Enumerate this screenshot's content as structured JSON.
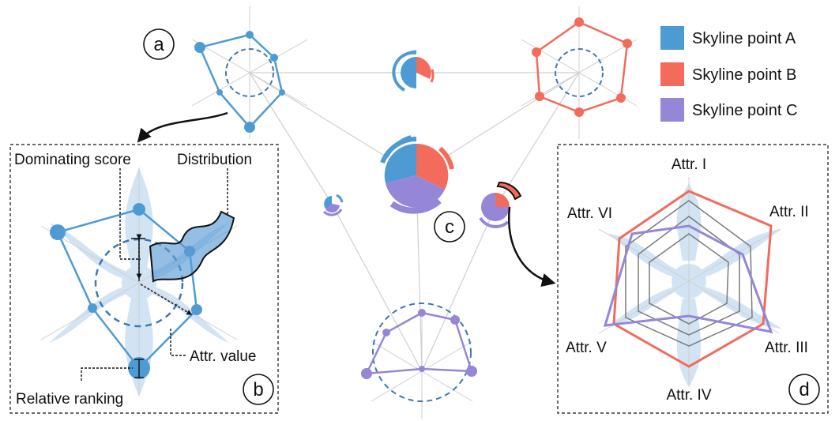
{
  "panel_labels": {
    "a": "a",
    "b": "b",
    "c": "c",
    "d": "d"
  },
  "legend": [
    {
      "label": "Skyline point A",
      "color": "#4e9bd4"
    },
    {
      "label": "Skyline point B",
      "color": "#f26b5b"
    },
    {
      "label": "Skyline point C",
      "color": "#9686d8"
    }
  ],
  "annotations": {
    "dominating_score": "Dominating score",
    "distribution": "Distribution",
    "attr_value": "Attr. value",
    "relative_ranking": "Relative ranking"
  },
  "attributes": [
    "Attr. I",
    "Attr. II",
    "Attr. III",
    "Attr. IV",
    "Attr. V",
    "Attr. VI"
  ],
  "colors": {
    "a": "#4e9bd4",
    "b": "#f26b5b",
    "c": "#9686d8",
    "grey": "#7a7a7a",
    "axis": "#c8c8c8",
    "dash": "#3d78b0",
    "glyph": "#d2e3f3"
  }
}
